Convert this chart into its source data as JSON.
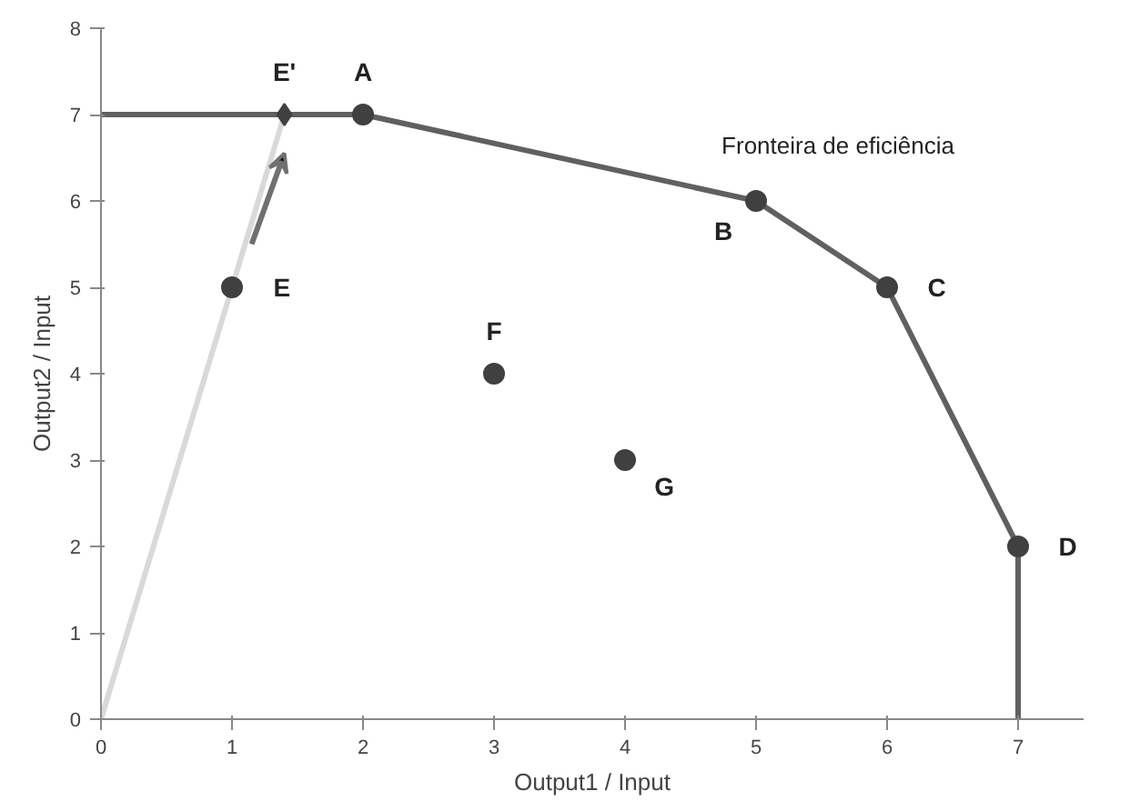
{
  "chart_data": {
    "type": "line",
    "xlabel": "Output1 / Input",
    "ylabel": "Output2 / Input",
    "xlim": [
      0,
      7.5
    ],
    "ylim": [
      0,
      8
    ],
    "xticks": [
      0,
      1,
      2,
      3,
      4,
      5,
      6,
      7
    ],
    "yticks": [
      0,
      1,
      2,
      3,
      4,
      5,
      6,
      7,
      8
    ],
    "grid": false,
    "series": [
      {
        "color": "#d9d9d9",
        "x": [
          0,
          1.4
        ],
        "values": [
          0,
          7
        ]
      },
      {
        "color": "#606060",
        "x": [
          0,
          2,
          5,
          6,
          7,
          7
        ],
        "values": [
          7,
          7,
          6,
          5,
          2,
          0
        ]
      },
      {
        "type": "scatter",
        "color": "#404040",
        "marker": "circle",
        "x": [
          2,
          5,
          6,
          7,
          1,
          3,
          4
        ],
        "values": [
          7,
          6,
          5,
          2,
          5,
          4,
          3
        ]
      },
      {
        "type": "scatter",
        "color": "#404040",
        "marker": "diamond",
        "x": [
          1.4
        ],
        "values": [
          7
        ]
      }
    ],
    "annotations": [
      {
        "text": "A",
        "x": 2,
        "y": 7
      },
      {
        "text": "B",
        "x": 5,
        "y": 6
      },
      {
        "text": "C",
        "x": 6,
        "y": 5
      },
      {
        "text": "D",
        "x": 7,
        "y": 2
      },
      {
        "text": "E",
        "x": 1,
        "y": 5
      },
      {
        "text": "F",
        "x": 3,
        "y": 4
      },
      {
        "text": "G",
        "x": 4,
        "y": 3
      },
      {
        "text": "E'",
        "x": 1.4,
        "y": 7
      },
      "Fronteira de eficiência"
    ]
  }
}
